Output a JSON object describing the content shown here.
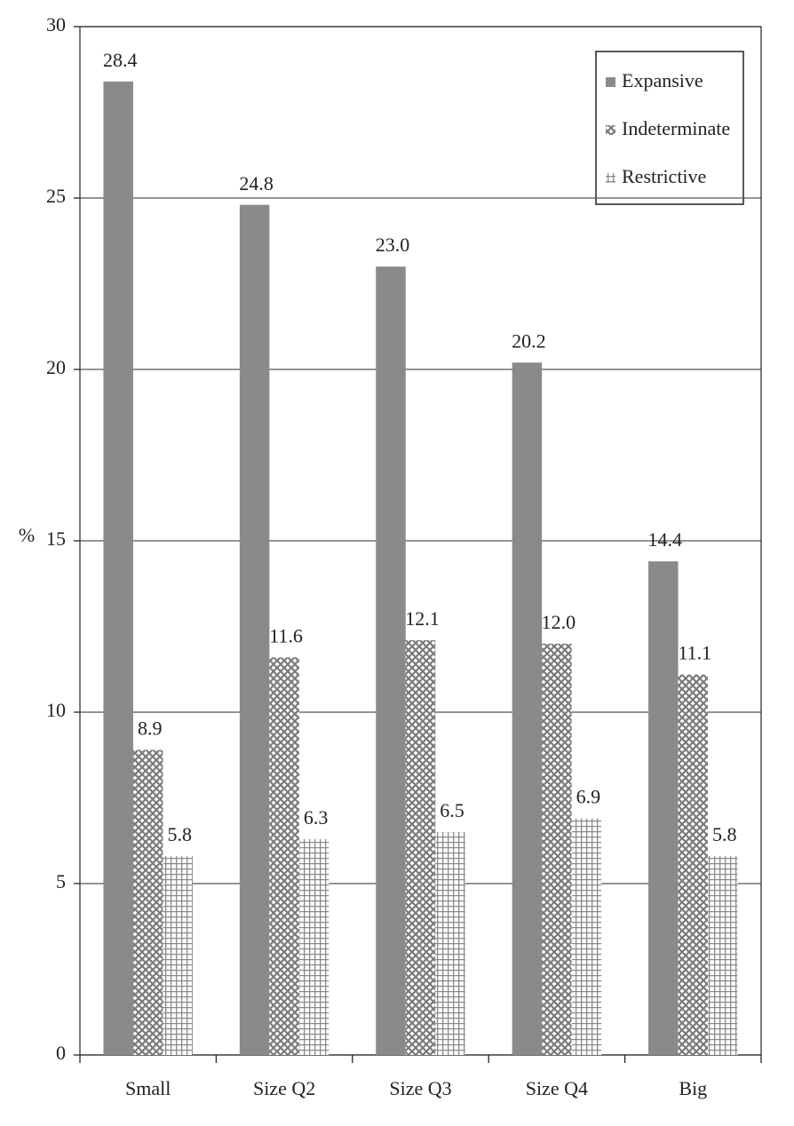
{
  "chart_data": {
    "type": "bar",
    "y_label": "%",
    "categories": [
      "Small",
      "Size Q2",
      "Size Q3",
      "Size Q4",
      "Big"
    ],
    "series": [
      {
        "name": "Expansive",
        "color": "#8a8a8a",
        "values": [
          28.4,
          24.8,
          23.0,
          20.2,
          14.4
        ],
        "value_labels": [
          "28.4",
          "24.8",
          "23.0",
          "20.2",
          "14.4"
        ]
      },
      {
        "name": "Indeterminate",
        "color": "#7a7a7a",
        "values": [
          8.9,
          11.6,
          12.1,
          12.0,
          11.1
        ],
        "value_labels": [
          "8.9",
          "11.6",
          "12.1",
          "12.0",
          "11.1"
        ]
      },
      {
        "name": "Restrictive",
        "color": "#8a8a8a",
        "values": [
          5.8,
          6.3,
          6.5,
          6.9,
          5.8
        ],
        "value_labels": [
          "5.8",
          "6.3",
          "6.5",
          "6.9",
          "5.8"
        ]
      }
    ],
    "ylim": [
      0,
      30
    ],
    "yticks": [
      0,
      5,
      10,
      15,
      20,
      25,
      30
    ],
    "grid": true,
    "legend": "upper right"
  }
}
